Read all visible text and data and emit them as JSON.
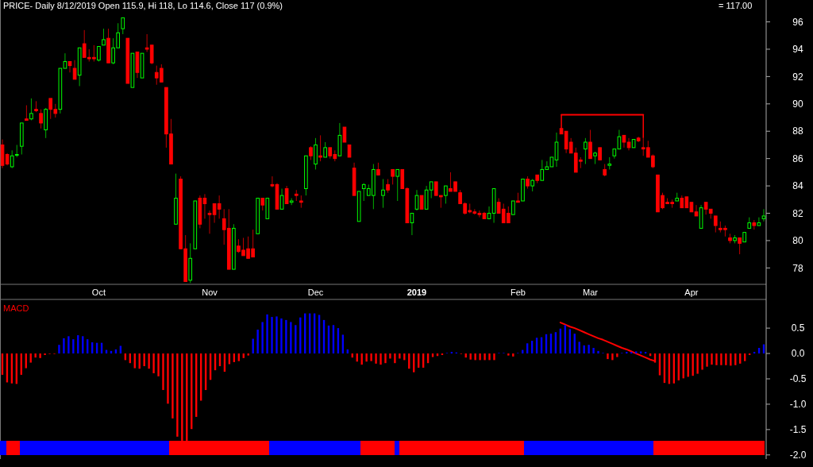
{
  "chart_data": [
    {
      "type": "candlestick",
      "subtitle": "PRICE- Daily 8/12/2019 Open 115.9, Hi 118, Lo 114.6, Close 117 (0.9%)",
      "annotations": [
        "= 117.00"
      ],
      "categories": [
        null,
        null,
        null,
        null,
        null,
        null,
        null,
        null,
        null,
        null,
        null,
        null,
        null,
        null,
        null,
        null,
        null,
        null,
        null,
        null,
        "Oct",
        null,
        null,
        null,
        null,
        null,
        null,
        null,
        null,
        null,
        null,
        null,
        null,
        null,
        null,
        null,
        null,
        null,
        null,
        null,
        null,
        null,
        null,
        "Nov",
        null,
        null,
        null,
        null,
        null,
        null,
        null,
        null,
        null,
        null,
        null,
        null,
        null,
        null,
        null,
        null,
        null,
        null,
        null,
        null,
        null,
        "Dec",
        null,
        null,
        null,
        null,
        null,
        null,
        null,
        null,
        null,
        null,
        null,
        null,
        null,
        null,
        null,
        null,
        null,
        null,
        null,
        null,
        "2019",
        null,
        null,
        null,
        null,
        null,
        null,
        null,
        null,
        null,
        null,
        null,
        null,
        null,
        null,
        null,
        null,
        null,
        null,
        null,
        null,
        "Feb",
        null,
        null,
        null,
        null,
        null,
        null,
        null,
        null,
        null,
        null,
        null,
        null,
        null,
        null,
        "Mar",
        null,
        null,
        null,
        null,
        null,
        null,
        null,
        null,
        null,
        null,
        null,
        null,
        null,
        null,
        null,
        null,
        null,
        null,
        null,
        null,
        "Apr",
        null,
        null,
        null,
        null,
        null,
        null,
        null,
        null,
        null,
        null,
        null,
        null,
        null,
        null,
        null
      ],
      "ohlc": [
        [
          87.0,
          87.4,
          85.3,
          85.5
        ],
        [
          86.3,
          86.4,
          85.5,
          85.6
        ],
        [
          85.4,
          86.6,
          85.3,
          86.2
        ],
        [
          86.3,
          87.0,
          86.1,
          86.3
        ],
        [
          86.9,
          88.6,
          86.3,
          88.6
        ],
        [
          88.9,
          89.9,
          88.8,
          88.8
        ],
        [
          88.9,
          90.4,
          88.8,
          89.3
        ],
        [
          89.6,
          90.2,
          89.4,
          89.5
        ],
        [
          89.3,
          89.6,
          88.2,
          88.6
        ],
        [
          88.1,
          89.7,
          87.5,
          89.6
        ],
        [
          90.4,
          90.4,
          88.9,
          89.6
        ],
        [
          89.6,
          90.0,
          89.0,
          89.3
        ],
        [
          89.6,
          92.6,
          89.3,
          92.6
        ],
        [
          92.6,
          93.7,
          92.6,
          93.1
        ],
        [
          93.1,
          93.1,
          92.3,
          92.8
        ],
        [
          92.6,
          93.2,
          91.8,
          91.8
        ],
        [
          92.1,
          94.1,
          91.3,
          94.1
        ],
        [
          94.4,
          95.4,
          93.4,
          93.4
        ],
        [
          93.4,
          94.0,
          93.1,
          93.3
        ],
        [
          93.4,
          94.3,
          93.1,
          93.3
        ],
        [
          93.2,
          94.2,
          93.1,
          94.2
        ],
        [
          94.3,
          95.5,
          94.3,
          94.7
        ],
        [
          94.8,
          95.5,
          93.0,
          93.0
        ],
        [
          93.0,
          94.8,
          92.9,
          94.1
        ],
        [
          94.1,
          95.9,
          94.1,
          95.2
        ],
        [
          95.5,
          96.3,
          95.1,
          96.3
        ],
        [
          94.8,
          94.8,
          91.5,
          91.5
        ],
        [
          91.2,
          93.7,
          91.2,
          93.7
        ],
        [
          93.8,
          93.8,
          91.9,
          92.3
        ],
        [
          91.9,
          93.7,
          91.9,
          93.7
        ],
        [
          94.1,
          95.1,
          93.8,
          94.0
        ],
        [
          94.3,
          94.3,
          92.9,
          93.0
        ],
        [
          92.3,
          92.8,
          91.4,
          91.9
        ],
        [
          92.6,
          92.9,
          91.6,
          91.6
        ],
        [
          91.2,
          91.2,
          86.8,
          87.8
        ],
        [
          87.8,
          88.9,
          85.6,
          85.6
        ],
        [
          81.2,
          84.9,
          81.2,
          83.1
        ],
        [
          84.5,
          84.7,
          79.4,
          79.4
        ],
        [
          79.4,
          80.4,
          77.0,
          77.0
        ],
        [
          77.1,
          79.8,
          76.9,
          78.7
        ],
        [
          79.4,
          82.9,
          79.4,
          82.9
        ],
        [
          83.1,
          83.3,
          80.9,
          81.2
        ],
        [
          83.1,
          83.4,
          81.6,
          82.7
        ],
        [
          82.0,
          82.2,
          80.5,
          81.9
        ],
        [
          82.7,
          82.7,
          81.3,
          81.9
        ],
        [
          82.7,
          83.3,
          81.6,
          82.3
        ],
        [
          81.6,
          82.3,
          79.7,
          80.8
        ],
        [
          80.9,
          82.3,
          77.9,
          77.9
        ],
        [
          77.9,
          81.2,
          77.9,
          80.9
        ],
        [
          79.6,
          80.1,
          79.1,
          79.2
        ],
        [
          79.3,
          80.2,
          78.9,
          78.9
        ],
        [
          79.4,
          80.3,
          78.7,
          78.7
        ],
        [
          79.4,
          80.8,
          78.8,
          78.8
        ],
        [
          80.5,
          83.1,
          80.5,
          83.1
        ],
        [
          83.1,
          83.1,
          82.2,
          82.6
        ],
        [
          81.6,
          83.1,
          81.6,
          83.1
        ],
        [
          84.1,
          84.7,
          83.9,
          84.0
        ],
        [
          84.1,
          84.2,
          82.3,
          82.3
        ],
        [
          82.3,
          83.8,
          82.3,
          83.3
        ],
        [
          83.8,
          84.0,
          82.7,
          82.7
        ],
        [
          82.8,
          83.1,
          82.6,
          82.9
        ],
        [
          83.4,
          83.7,
          82.9,
          83.3
        ],
        [
          82.9,
          83.3,
          82.4,
          82.8
        ],
        [
          83.8,
          86.2,
          83.3,
          86.2
        ],
        [
          86.8,
          86.9,
          85.9,
          86.2
        ],
        [
          85.6,
          87.5,
          85.2,
          87.0
        ],
        [
          86.2,
          87.7,
          85.8,
          86.1
        ],
        [
          86.1,
          87.2,
          86.1,
          86.8
        ],
        [
          86.8,
          86.8,
          86.0,
          86.2
        ],
        [
          86.3,
          86.6,
          85.8,
          86.0
        ],
        [
          86.2,
          88.6,
          86.2,
          87.7
        ],
        [
          88.3,
          88.3,
          87.2,
          87.2
        ],
        [
          87.0,
          87.0,
          86.1,
          86.1
        ],
        [
          85.3,
          85.7,
          83.3,
          83.3
        ],
        [
          81.4,
          83.6,
          81.4,
          83.6
        ],
        [
          83.8,
          84.2,
          82.9,
          84.1
        ],
        [
          83.3,
          84.1,
          83.3,
          83.8
        ],
        [
          83.3,
          85.6,
          82.3,
          85.2
        ],
        [
          85.2,
          85.7,
          84.8,
          84.8
        ],
        [
          83.3,
          84.5,
          82.4,
          83.7
        ],
        [
          84.1,
          84.5,
          83.5,
          83.7
        ],
        [
          85.2,
          85.2,
          84.1,
          84.7
        ],
        [
          84.7,
          85.2,
          82.9,
          85.2
        ],
        [
          85.2,
          85.2,
          83.8,
          83.8
        ],
        [
          83.8,
          83.9,
          81.3,
          81.3
        ],
        [
          81.3,
          82.0,
          80.4,
          82.0
        ],
        [
          82.3,
          83.7,
          82.2,
          83.3
        ],
        [
          83.3,
          83.3,
          82.3,
          82.3
        ],
        [
          82.3,
          84.0,
          82.3,
          83.7
        ],
        [
          83.7,
          84.3,
          83.1,
          84.3
        ],
        [
          84.3,
          84.3,
          83.3,
          83.3
        ],
        [
          83.3,
          83.3,
          82.4,
          83.2
        ],
        [
          83.3,
          84.0,
          82.7,
          84.0
        ],
        [
          83.8,
          85.0,
          83.6,
          83.6
        ],
        [
          84.3,
          84.3,
          83.6,
          83.6
        ],
        [
          83.5,
          83.7,
          82.7,
          82.7
        ],
        [
          82.7,
          82.8,
          81.9,
          82.0
        ],
        [
          82.2,
          82.7,
          82.0,
          82.1
        ],
        [
          82.1,
          82.3,
          81.9,
          82.0
        ],
        [
          82.0,
          82.2,
          81.7,
          81.9
        ],
        [
          82.0,
          82.1,
          81.6,
          81.6
        ],
        [
          81.6,
          82.5,
          81.6,
          82.0
        ],
        [
          82.0,
          83.8,
          81.3,
          83.8
        ],
        [
          82.8,
          83.1,
          82.0,
          82.0
        ],
        [
          82.3,
          82.7,
          81.3,
          81.3
        ],
        [
          82.0,
          82.5,
          81.3,
          81.3
        ],
        [
          81.9,
          82.9,
          81.9,
          82.9
        ],
        [
          82.9,
          83.5,
          82.8,
          82.8
        ],
        [
          82.9,
          84.5,
          82.9,
          84.5
        ],
        [
          84.5,
          84.7,
          83.8,
          84.0
        ],
        [
          84.0,
          84.5,
          83.6,
          84.4
        ],
        [
          84.8,
          84.8,
          84.2,
          84.4
        ],
        [
          84.4,
          85.9,
          84.4,
          85.2
        ],
        [
          85.2,
          85.8,
          85.2,
          85.4
        ],
        [
          85.4,
          86.1,
          85.4,
          86.1
        ],
        [
          85.9,
          87.9,
          85.4,
          87.2
        ],
        [
          88.2,
          88.2,
          87.8,
          87.8
        ],
        [
          88.0,
          88.0,
          86.4,
          86.7
        ],
        [
          87.2,
          87.5,
          86.4,
          86.4
        ],
        [
          86.4,
          86.8,
          85.0,
          85.0
        ],
        [
          85.9,
          86.1,
          85.3,
          85.8
        ],
        [
          86.7,
          87.5,
          85.6,
          87.2
        ],
        [
          87.2,
          88.1,
          86.0,
          86.0
        ],
        [
          86.2,
          86.5,
          85.6,
          86.4
        ],
        [
          86.8,
          86.8,
          85.9,
          85.9
        ],
        [
          85.2,
          85.6,
          84.7,
          84.8
        ],
        [
          85.5,
          86.1,
          85.2,
          85.6
        ],
        [
          86.2,
          86.7,
          86.0,
          86.7
        ],
        [
          86.7,
          88.1,
          86.7,
          87.6
        ],
        [
          87.7,
          87.7,
          86.8,
          87.2
        ],
        [
          87.2,
          87.5,
          86.6,
          86.8
        ],
        [
          86.8,
          87.4,
          86.8,
          87.4
        ],
        [
          87.5,
          87.6,
          87.2,
          87.3
        ],
        [
          86.8,
          87.5,
          86.2,
          86.7
        ],
        [
          86.8,
          87.3,
          86.1,
          86.1
        ],
        [
          86.2,
          86.3,
          85.3,
          85.4
        ],
        [
          84.8,
          84.8,
          82.1,
          82.1
        ],
        [
          83.3,
          83.5,
          82.3,
          82.4
        ],
        [
          82.8,
          83.1,
          82.7,
          82.7
        ],
        [
          82.8,
          83.0,
          82.4,
          82.7
        ],
        [
          82.9,
          83.5,
          82.9,
          83.1
        ],
        [
          83.1,
          83.3,
          82.4,
          82.4
        ],
        [
          83.2,
          83.2,
          82.4,
          82.4
        ],
        [
          82.8,
          82.8,
          82.1,
          82.1
        ],
        [
          82.1,
          82.6,
          81.8,
          81.8
        ],
        [
          80.9,
          82.6,
          80.9,
          82.4
        ],
        [
          82.8,
          82.8,
          81.9,
          82.3
        ],
        [
          82.3,
          82.3,
          81.6,
          82.0
        ],
        [
          81.8,
          81.8,
          80.6,
          81.1
        ],
        [
          80.9,
          81.4,
          80.6,
          80.8
        ],
        [
          80.9,
          81.1,
          80.3,
          80.8
        ],
        [
          80.2,
          80.5,
          79.8,
          80.0
        ],
        [
          80.0,
          80.4,
          79.8,
          80.2
        ],
        [
          80.2,
          80.2,
          79.0,
          79.8
        ],
        [
          79.9,
          80.6,
          79.9,
          80.6
        ],
        [
          80.9,
          81.7,
          80.9,
          81.3
        ],
        [
          81.3,
          81.5,
          80.8,
          81.1
        ],
        [
          81.1,
          81.7,
          81.1,
          81.3
        ],
        [
          81.6,
          82.3,
          81.4,
          81.8
        ]
      ],
      "series": [
        {
          "type": "line",
          "color": "#ff0000",
          "values": [
            null,
            null,
            null,
            null,
            null,
            null,
            null,
            null,
            null,
            null,
            null,
            null,
            null,
            null,
            null,
            null,
            null,
            null,
            null,
            null,
            null,
            null,
            null,
            null,
            null,
            null,
            null,
            null,
            null,
            null,
            null,
            null,
            null,
            null,
            null,
            null,
            null,
            null,
            null,
            null,
            null,
            null,
            null,
            null,
            null,
            null,
            null,
            null,
            null,
            null,
            null,
            null,
            null,
            null,
            null,
            null,
            null,
            null,
            null,
            null,
            null,
            null,
            null,
            null,
            null,
            null,
            null,
            null,
            null,
            null,
            null,
            null,
            null,
            null,
            null,
            null,
            null,
            null,
            null,
            null,
            null,
            null,
            null,
            null,
            null,
            null,
            null,
            null,
            null,
            null,
            null,
            null,
            null,
            null,
            null,
            null,
            null,
            null,
            null,
            null,
            null,
            null,
            null,
            null,
            null,
            null,
            null,
            null,
            null,
            null,
            null,
            null,
            null,
            null,
            null,
            null,
            89.2,
            89.2,
            89.2,
            89.2,
            89.2,
            89.2,
            89.2,
            89.2,
            89.2,
            89.2,
            89.2,
            89.2,
            89.2,
            89.2,
            89.2,
            89.2,
            89.2,
            89.2,
            null,
            null,
            null,
            null,
            null,
            null,
            null,
            null,
            null,
            null,
            null,
            null,
            null,
            null,
            null,
            null,
            null,
            null,
            null,
            null,
            null,
            null,
            null,
            null,
            null
          ]
        }
      ],
      "ylim": [
        76.8,
        97.6
      ],
      "yticks": [
        78,
        80,
        82,
        84,
        86,
        88,
        90,
        92,
        94,
        96
      ]
    },
    {
      "type": "bar",
      "title": "MACD",
      "tick_labels": "y",
      "categories": [
        null,
        null,
        null,
        null,
        null,
        null,
        null,
        null,
        null,
        null,
        null,
        null,
        null,
        null,
        null,
        null,
        null,
        null,
        null,
        null,
        null,
        null,
        null,
        null,
        null,
        null,
        null,
        null,
        null,
        null,
        null,
        null,
        null,
        null,
        null,
        null,
        null,
        null,
        null,
        null,
        null,
        null,
        null,
        null,
        null,
        null,
        null,
        null,
        null,
        null,
        null,
        null,
        null,
        null,
        null,
        null,
        null,
        null,
        null,
        null,
        null,
        null,
        null,
        null,
        null,
        null,
        null,
        null,
        null,
        null,
        null,
        null,
        null,
        null,
        null,
        null,
        null,
        null,
        null,
        null,
        null,
        null,
        null,
        null,
        null,
        null,
        null,
        null,
        null,
        null,
        null,
        null,
        null,
        null,
        null,
        null,
        null,
        null,
        null,
        null,
        null,
        null,
        null,
        null,
        null,
        null,
        null,
        null,
        null,
        null,
        null,
        null,
        null,
        null,
        null,
        null,
        null,
        null,
        null,
        null,
        null,
        null,
        null,
        null,
        null,
        null,
        null,
        null,
        null,
        null,
        null,
        null,
        null,
        null,
        null,
        null,
        null,
        null,
        null,
        null,
        null,
        null,
        null,
        null,
        null,
        null,
        null,
        null,
        null,
        null,
        null,
        null,
        null,
        null,
        null,
        null,
        null,
        null,
        null,
        null,
        null,
        null
      ],
      "values": [
        -0.42,
        -0.57,
        -0.59,
        -0.6,
        -0.42,
        -0.29,
        -0.18,
        -0.08,
        -0.09,
        -0.03,
        -0.01,
        -0.01,
        0.17,
        0.3,
        0.34,
        0.28,
        0.36,
        0.34,
        0.28,
        0.22,
        0.21,
        0.21,
        0.07,
        0.05,
        0.08,
        0.15,
        -0.13,
        -0.19,
        -0.29,
        -0.3,
        -0.25,
        -0.3,
        -0.39,
        -0.45,
        -0.72,
        -0.99,
        -1.28,
        -1.64,
        -1.72,
        -1.72,
        -1.49,
        -1.25,
        -0.93,
        -0.72,
        -0.52,
        -0.33,
        -0.25,
        -0.36,
        -0.21,
        -0.17,
        -0.15,
        -0.09,
        -0.04,
        0.29,
        0.47,
        0.62,
        0.77,
        0.72,
        0.73,
        0.69,
        0.66,
        0.62,
        0.56,
        0.71,
        0.79,
        0.79,
        0.79,
        0.76,
        0.66,
        0.55,
        0.56,
        0.5,
        0.37,
        0.08,
        -0.08,
        -0.16,
        -0.22,
        -0.16,
        -0.15,
        -0.2,
        -0.22,
        -0.19,
        -0.1,
        -0.19,
        -0.1,
        -0.13,
        -0.3,
        -0.37,
        -0.28,
        -0.28,
        -0.19,
        -0.07,
        -0.05,
        -0.03,
        0.01,
        0.03,
        0.02,
        -0.01,
        -0.08,
        -0.12,
        -0.13,
        -0.13,
        -0.13,
        -0.13,
        -0.13,
        0.01,
        0.01,
        -0.04,
        -0.06,
        0.01,
        0.07,
        0.2,
        0.25,
        0.31,
        0.32,
        0.38,
        0.39,
        0.42,
        0.49,
        0.56,
        0.48,
        0.39,
        0.23,
        0.16,
        0.17,
        0.11,
        0.05,
        0.01,
        -0.11,
        -0.13,
        -0.07,
        0.01,
        0.03,
        0.03,
        0.04,
        0.04,
        0.03,
        -0.05,
        -0.18,
        -0.43,
        -0.58,
        -0.6,
        -0.59,
        -0.53,
        -0.49,
        -0.46,
        -0.44,
        -0.4,
        -0.32,
        -0.26,
        -0.22,
        -0.23,
        -0.23,
        -0.23,
        -0.24,
        -0.23,
        -0.2,
        -0.15,
        -0.03,
        0.03,
        0.11,
        0.18
      ],
      "colors": [
        "#ff0000",
        "#ff0000",
        "#ff0000",
        "#ff0000",
        "#ff0000",
        "#ff0000",
        "#ff0000",
        "#ff0000",
        "#ff0000",
        "#ff0000",
        "#ff0000",
        "#ff0000",
        "#0000ff",
        "#0000ff",
        "#0000ff",
        "#0000ff",
        "#0000ff",
        "#0000ff",
        "#0000ff",
        "#0000ff",
        "#0000ff",
        "#0000ff",
        "#0000ff",
        "#0000ff",
        "#0000ff",
        "#0000ff",
        "#ff0000",
        "#ff0000",
        "#ff0000",
        "#ff0000",
        "#ff0000",
        "#ff0000",
        "#ff0000",
        "#ff0000",
        "#ff0000",
        "#ff0000",
        "#ff0000",
        "#ff0000",
        "#ff0000",
        "#ff0000",
        "#ff0000",
        "#ff0000",
        "#ff0000",
        "#ff0000",
        "#ff0000",
        "#ff0000",
        "#ff0000",
        "#ff0000",
        "#ff0000",
        "#ff0000",
        "#ff0000",
        "#ff0000",
        "#ff0000",
        "#0000ff",
        "#0000ff",
        "#0000ff",
        "#0000ff",
        "#0000ff",
        "#0000ff",
        "#0000ff",
        "#0000ff",
        "#0000ff",
        "#0000ff",
        "#0000ff",
        "#0000ff",
        "#0000ff",
        "#0000ff",
        "#0000ff",
        "#0000ff",
        "#0000ff",
        "#0000ff",
        "#0000ff",
        "#0000ff",
        "#0000ff",
        "#ff0000",
        "#ff0000",
        "#ff0000",
        "#ff0000",
        "#ff0000",
        "#ff0000",
        "#ff0000",
        "#ff0000",
        "#ff0000",
        "#ff0000",
        "#ff0000",
        "#ff0000",
        "#ff0000",
        "#ff0000",
        "#ff0000",
        "#ff0000",
        "#ff0000",
        "#ff0000",
        "#ff0000",
        "#ff0000",
        "#0000ff",
        "#0000ff",
        "#0000ff",
        "#ff0000",
        "#ff0000",
        "#ff0000",
        "#ff0000",
        "#ff0000",
        "#ff0000",
        "#ff0000",
        "#ff0000",
        "#0000ff",
        "#0000ff",
        "#ff0000",
        "#ff0000",
        "#0000ff",
        "#0000ff",
        "#0000ff",
        "#0000ff",
        "#0000ff",
        "#0000ff",
        "#0000ff",
        "#0000ff",
        "#0000ff",
        "#0000ff",
        "#0000ff",
        "#0000ff",
        "#0000ff",
        "#0000ff",
        "#0000ff",
        "#0000ff",
        "#0000ff",
        "#0000ff",
        "#0000ff",
        "#ff0000",
        "#ff0000",
        "#ff0000",
        "#0000ff",
        "#0000ff",
        "#0000ff",
        "#0000ff",
        "#0000ff",
        "#0000ff",
        "#ff0000",
        "#ff0000",
        "#ff0000",
        "#ff0000",
        "#ff0000",
        "#ff0000",
        "#ff0000",
        "#ff0000",
        "#ff0000",
        "#ff0000",
        "#ff0000",
        "#ff0000",
        "#ff0000",
        "#ff0000",
        "#ff0000",
        "#ff0000",
        "#ff0000",
        "#ff0000",
        "#ff0000",
        "#ff0000",
        "#ff0000",
        "#ff0000",
        "#0000ff",
        "#0000ff",
        "#0000ff"
      ],
      "series": [
        {
          "type": "line",
          "color": "#ff0000",
          "values": [
            null,
            null,
            null,
            null,
            null,
            null,
            null,
            null,
            null,
            null,
            null,
            null,
            null,
            null,
            null,
            null,
            null,
            null,
            null,
            null,
            null,
            null,
            null,
            null,
            null,
            null,
            null,
            null,
            null,
            null,
            null,
            null,
            null,
            null,
            null,
            null,
            null,
            null,
            null,
            null,
            null,
            null,
            null,
            null,
            null,
            null,
            null,
            null,
            null,
            null,
            null,
            null,
            null,
            null,
            null,
            null,
            null,
            null,
            null,
            null,
            null,
            null,
            null,
            null,
            null,
            null,
            null,
            null,
            null,
            null,
            null,
            null,
            null,
            null,
            null,
            null,
            null,
            null,
            null,
            null,
            null,
            null,
            null,
            null,
            null,
            null,
            null,
            null,
            null,
            null,
            null,
            null,
            null,
            null,
            null,
            null,
            null,
            null,
            null,
            null,
            null,
            null,
            null,
            null,
            null,
            null,
            null,
            null,
            null,
            null,
            null,
            null,
            null,
            null,
            null,
            null,
            null,
            null,
            0.61,
            0.57,
            0.53,
            0.5,
            0.46,
            0.42,
            0.38,
            0.34,
            0.3,
            0.27,
            0.23,
            0.19,
            0.15,
            0.11,
            0.08,
            0.04,
            0.0,
            -0.04,
            -0.08,
            -0.12,
            -0.15,
            null,
            null,
            null,
            null,
            null,
            null,
            null,
            null,
            null,
            null,
            null,
            null,
            null,
            null,
            null,
            null,
            null,
            null,
            null,
            null,
            null,
            null,
            null
          ]
        }
      ],
      "ylim": [
        -2.05,
        1.05
      ],
      "yticks": [
        0.5,
        {
          "value": 0,
          "label": "0.0"
        },
        -0.5,
        {
          "value": -1,
          "label": "-1.0"
        },
        -1.5,
        {
          "value": -2,
          "label": "-2.0"
        }
      ]
    }
  ]
}
